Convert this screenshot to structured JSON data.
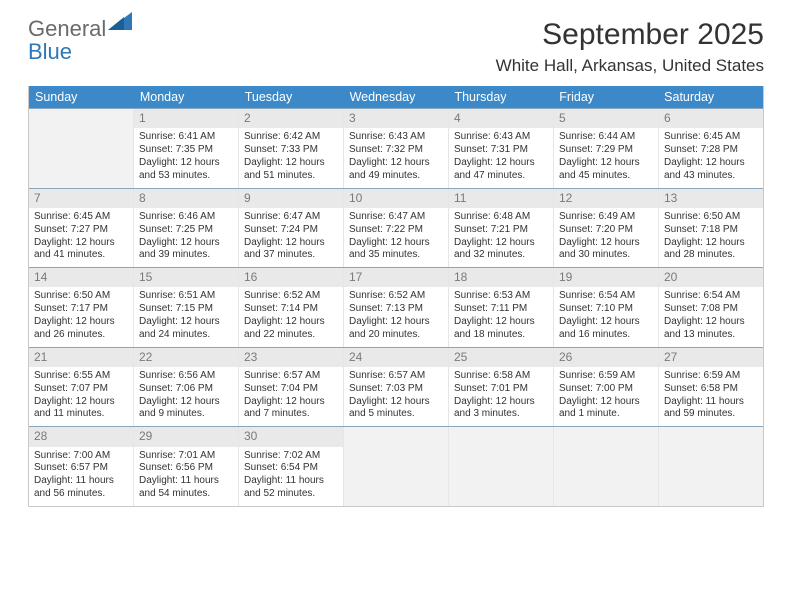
{
  "logo": {
    "text1": "General",
    "text2": "Blue"
  },
  "colors": {
    "header_bg": "#3b89c9",
    "header_text": "#ffffff",
    "daynum_bg": "#e9e9e9",
    "daynum_text": "#7a7a7a",
    "cell_text": "#333333",
    "row_border": "#8aa8bd",
    "logo_gray": "#6a6a6a",
    "logo_blue": "#2f78b7"
  },
  "title": "September 2025",
  "location": "White Hall, Arkansas, United States",
  "dayNames": [
    "Sunday",
    "Monday",
    "Tuesday",
    "Wednesday",
    "Thursday",
    "Friday",
    "Saturday"
  ],
  "weeks": [
    [
      {
        "day": "",
        "sunrise": "",
        "sunset": "",
        "daylight": ""
      },
      {
        "day": "1",
        "sunrise": "Sunrise: 6:41 AM",
        "sunset": "Sunset: 7:35 PM",
        "daylight": "Daylight: 12 hours and 53 minutes."
      },
      {
        "day": "2",
        "sunrise": "Sunrise: 6:42 AM",
        "sunset": "Sunset: 7:33 PM",
        "daylight": "Daylight: 12 hours and 51 minutes."
      },
      {
        "day": "3",
        "sunrise": "Sunrise: 6:43 AM",
        "sunset": "Sunset: 7:32 PM",
        "daylight": "Daylight: 12 hours and 49 minutes."
      },
      {
        "day": "4",
        "sunrise": "Sunrise: 6:43 AM",
        "sunset": "Sunset: 7:31 PM",
        "daylight": "Daylight: 12 hours and 47 minutes."
      },
      {
        "day": "5",
        "sunrise": "Sunrise: 6:44 AM",
        "sunset": "Sunset: 7:29 PM",
        "daylight": "Daylight: 12 hours and 45 minutes."
      },
      {
        "day": "6",
        "sunrise": "Sunrise: 6:45 AM",
        "sunset": "Sunset: 7:28 PM",
        "daylight": "Daylight: 12 hours and 43 minutes."
      }
    ],
    [
      {
        "day": "7",
        "sunrise": "Sunrise: 6:45 AM",
        "sunset": "Sunset: 7:27 PM",
        "daylight": "Daylight: 12 hours and 41 minutes."
      },
      {
        "day": "8",
        "sunrise": "Sunrise: 6:46 AM",
        "sunset": "Sunset: 7:25 PM",
        "daylight": "Daylight: 12 hours and 39 minutes."
      },
      {
        "day": "9",
        "sunrise": "Sunrise: 6:47 AM",
        "sunset": "Sunset: 7:24 PM",
        "daylight": "Daylight: 12 hours and 37 minutes."
      },
      {
        "day": "10",
        "sunrise": "Sunrise: 6:47 AM",
        "sunset": "Sunset: 7:22 PM",
        "daylight": "Daylight: 12 hours and 35 minutes."
      },
      {
        "day": "11",
        "sunrise": "Sunrise: 6:48 AM",
        "sunset": "Sunset: 7:21 PM",
        "daylight": "Daylight: 12 hours and 32 minutes."
      },
      {
        "day": "12",
        "sunrise": "Sunrise: 6:49 AM",
        "sunset": "Sunset: 7:20 PM",
        "daylight": "Daylight: 12 hours and 30 minutes."
      },
      {
        "day": "13",
        "sunrise": "Sunrise: 6:50 AM",
        "sunset": "Sunset: 7:18 PM",
        "daylight": "Daylight: 12 hours and 28 minutes."
      }
    ],
    [
      {
        "day": "14",
        "sunrise": "Sunrise: 6:50 AM",
        "sunset": "Sunset: 7:17 PM",
        "daylight": "Daylight: 12 hours and 26 minutes."
      },
      {
        "day": "15",
        "sunrise": "Sunrise: 6:51 AM",
        "sunset": "Sunset: 7:15 PM",
        "daylight": "Daylight: 12 hours and 24 minutes."
      },
      {
        "day": "16",
        "sunrise": "Sunrise: 6:52 AM",
        "sunset": "Sunset: 7:14 PM",
        "daylight": "Daylight: 12 hours and 22 minutes."
      },
      {
        "day": "17",
        "sunrise": "Sunrise: 6:52 AM",
        "sunset": "Sunset: 7:13 PM",
        "daylight": "Daylight: 12 hours and 20 minutes."
      },
      {
        "day": "18",
        "sunrise": "Sunrise: 6:53 AM",
        "sunset": "Sunset: 7:11 PM",
        "daylight": "Daylight: 12 hours and 18 minutes."
      },
      {
        "day": "19",
        "sunrise": "Sunrise: 6:54 AM",
        "sunset": "Sunset: 7:10 PM",
        "daylight": "Daylight: 12 hours and 16 minutes."
      },
      {
        "day": "20",
        "sunrise": "Sunrise: 6:54 AM",
        "sunset": "Sunset: 7:08 PM",
        "daylight": "Daylight: 12 hours and 13 minutes."
      }
    ],
    [
      {
        "day": "21",
        "sunrise": "Sunrise: 6:55 AM",
        "sunset": "Sunset: 7:07 PM",
        "daylight": "Daylight: 12 hours and 11 minutes."
      },
      {
        "day": "22",
        "sunrise": "Sunrise: 6:56 AM",
        "sunset": "Sunset: 7:06 PM",
        "daylight": "Daylight: 12 hours and 9 minutes."
      },
      {
        "day": "23",
        "sunrise": "Sunrise: 6:57 AM",
        "sunset": "Sunset: 7:04 PM",
        "daylight": "Daylight: 12 hours and 7 minutes."
      },
      {
        "day": "24",
        "sunrise": "Sunrise: 6:57 AM",
        "sunset": "Sunset: 7:03 PM",
        "daylight": "Daylight: 12 hours and 5 minutes."
      },
      {
        "day": "25",
        "sunrise": "Sunrise: 6:58 AM",
        "sunset": "Sunset: 7:01 PM",
        "daylight": "Daylight: 12 hours and 3 minutes."
      },
      {
        "day": "26",
        "sunrise": "Sunrise: 6:59 AM",
        "sunset": "Sunset: 7:00 PM",
        "daylight": "Daylight: 12 hours and 1 minute."
      },
      {
        "day": "27",
        "sunrise": "Sunrise: 6:59 AM",
        "sunset": "Sunset: 6:58 PM",
        "daylight": "Daylight: 11 hours and 59 minutes."
      }
    ],
    [
      {
        "day": "28",
        "sunrise": "Sunrise: 7:00 AM",
        "sunset": "Sunset: 6:57 PM",
        "daylight": "Daylight: 11 hours and 56 minutes."
      },
      {
        "day": "29",
        "sunrise": "Sunrise: 7:01 AM",
        "sunset": "Sunset: 6:56 PM",
        "daylight": "Daylight: 11 hours and 54 minutes."
      },
      {
        "day": "30",
        "sunrise": "Sunrise: 7:02 AM",
        "sunset": "Sunset: 6:54 PM",
        "daylight": "Daylight: 11 hours and 52 minutes."
      },
      {
        "day": "",
        "sunrise": "",
        "sunset": "",
        "daylight": ""
      },
      {
        "day": "",
        "sunrise": "",
        "sunset": "",
        "daylight": ""
      },
      {
        "day": "",
        "sunrise": "",
        "sunset": "",
        "daylight": ""
      },
      {
        "day": "",
        "sunrise": "",
        "sunset": "",
        "daylight": ""
      }
    ]
  ]
}
